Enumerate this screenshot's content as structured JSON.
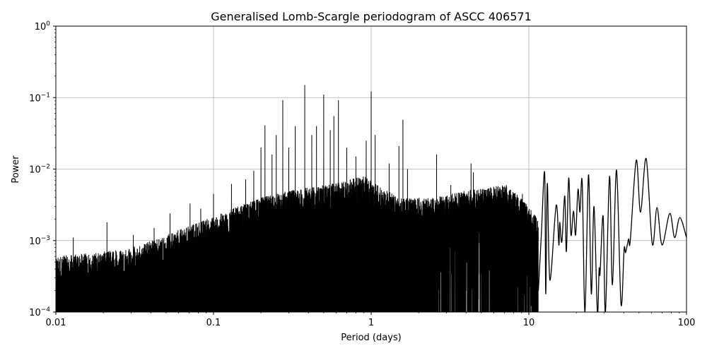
{
  "chart_data": {
    "type": "line",
    "title": "Generalised Lomb-Scargle periodogram of ASCC 406571",
    "xlabel": "Period (days)",
    "ylabel": "Power",
    "xscale": "log",
    "yscale": "log",
    "xlim": [
      0.01,
      100
    ],
    "ylim": [
      0.0001,
      1
    ],
    "grid": true,
    "line_color": "#000000",
    "grid_color": "#b0b0b0",
    "x_ticks": [
      {
        "value": 0.01,
        "label": "0.01"
      },
      {
        "value": 0.1,
        "label": "0.1"
      },
      {
        "value": 1,
        "label": "1"
      },
      {
        "value": 10,
        "label": "10"
      },
      {
        "value": 100,
        "label": "100"
      }
    ],
    "y_ticks": [
      {
        "value": 0.0001,
        "base": "10",
        "exp": "−4"
      },
      {
        "value": 0.001,
        "base": "10",
        "exp": "−3"
      },
      {
        "value": 0.01,
        "base": "10",
        "exp": "−2"
      },
      {
        "value": 0.1,
        "base": "10",
        "exp": "−1"
      },
      {
        "value": 1,
        "base": "10",
        "exp": "0"
      }
    ],
    "noise_envelope": [
      [
        0.01,
        0.0006
      ],
      [
        0.02,
        0.0007
      ],
      [
        0.03,
        0.0008
      ],
      [
        0.05,
        0.0012
      ],
      [
        0.1,
        0.0022
      ],
      [
        0.2,
        0.004
      ],
      [
        0.3,
        0.005
      ],
      [
        0.5,
        0.006
      ],
      [
        0.9,
        0.008
      ],
      [
        1.1,
        0.006
      ],
      [
        1.5,
        0.004
      ],
      [
        2.5,
        0.004
      ],
      [
        4,
        0.005
      ],
      [
        7,
        0.006
      ],
      [
        9,
        0.004
      ],
      [
        11.5,
        0.002
      ]
    ],
    "peaks": [
      [
        0.0129,
        0.0011
      ],
      [
        0.0211,
        0.0018
      ],
      [
        0.031,
        0.0012
      ],
      [
        0.042,
        0.0015
      ],
      [
        0.053,
        0.0024
      ],
      [
        0.071,
        0.0033
      ],
      [
        0.083,
        0.0028
      ],
      [
        0.1,
        0.0045
      ],
      [
        0.13,
        0.0062
      ],
      [
        0.16,
        0.0072
      ],
      [
        0.18,
        0.0095
      ],
      [
        0.2,
        0.02
      ],
      [
        0.212,
        0.041
      ],
      [
        0.235,
        0.016
      ],
      [
        0.25,
        0.03
      ],
      [
        0.275,
        0.092
      ],
      [
        0.3,
        0.02
      ],
      [
        0.33,
        0.04
      ],
      [
        0.379,
        0.15
      ],
      [
        0.42,
        0.03
      ],
      [
        0.45,
        0.04
      ],
      [
        0.5,
        0.11
      ],
      [
        0.55,
        0.035
      ],
      [
        0.58,
        0.055
      ],
      [
        0.62,
        0.092
      ],
      [
        0.7,
        0.02
      ],
      [
        0.8,
        0.015
      ],
      [
        0.93,
        0.025
      ],
      [
        1.0,
        0.122
      ],
      [
        1.06,
        0.03
      ],
      [
        1.3,
        0.012
      ],
      [
        1.5,
        0.021
      ],
      [
        1.59,
        0.049
      ],
      [
        1.7,
        0.01
      ],
      [
        2.6,
        0.016
      ],
      [
        3.2,
        0.006
      ],
      [
        4.3,
        0.012
      ],
      [
        4.45,
        0.009
      ],
      [
        7.2,
        0.006
      ],
      [
        8.3,
        0.004
      ],
      [
        9.1,
        0.0045
      ]
    ],
    "long_period_curve": [
      [
        11.5,
        0.0002
      ],
      [
        12.0,
        0.0012
      ],
      [
        12.6,
        0.0089
      ],
      [
        12.8,
        0.00018
      ],
      [
        13.1,
        0.0063
      ],
      [
        13.6,
        0.00028
      ],
      [
        14.9,
        0.0031
      ],
      [
        15.5,
        0.00087
      ],
      [
        15.7,
        0.0018
      ],
      [
        16.2,
        0.00096
      ],
      [
        16.9,
        0.0042
      ],
      [
        17.3,
        0.0007
      ],
      [
        17.9,
        0.0075
      ],
      [
        18.5,
        0.0012
      ],
      [
        19.2,
        0.0026
      ],
      [
        19.8,
        0.0012
      ],
      [
        20.5,
        0.0052
      ],
      [
        21.1,
        0.0025
      ],
      [
        21.8,
        0.0066
      ],
      [
        22.7,
        0.0001
      ],
      [
        23.9,
        0.0083
      ],
      [
        24.9,
        0.00018
      ],
      [
        25.9,
        0.003
      ],
      [
        27.2,
        0.0001
      ],
      [
        27.9,
        0.0004
      ],
      [
        28.3,
        0.00035
      ],
      [
        29.6,
        0.0022
      ],
      [
        30.6,
        0.0001
      ],
      [
        32.5,
        0.0079
      ],
      [
        33.9,
        0.00024
      ],
      [
        36.0,
        0.0097
      ],
      [
        38.4,
        0.00013
      ],
      [
        40.2,
        0.00075
      ],
      [
        41.1,
        0.00068
      ],
      [
        42.9,
        0.00105
      ],
      [
        44.0,
        0.001
      ],
      [
        48.0,
        0.0133
      ],
      [
        51.1,
        0.0025
      ],
      [
        55.5,
        0.014
      ],
      [
        60.7,
        0.00089
      ],
      [
        65.0,
        0.0029
      ],
      [
        70.0,
        0.00087
      ],
      [
        78.3,
        0.0024
      ],
      [
        84.1,
        0.0011
      ],
      [
        90.7,
        0.0021
      ],
      [
        100,
        0.0011
      ]
    ]
  }
}
